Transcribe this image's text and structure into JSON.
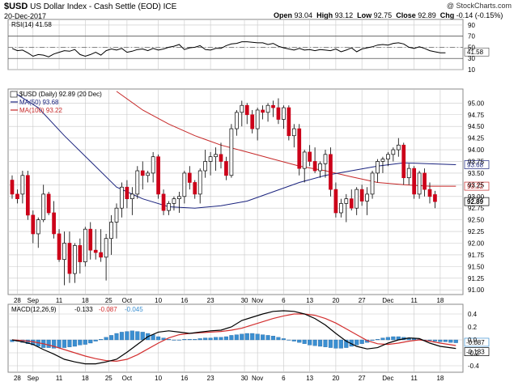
{
  "header": {
    "symbol": "$USD",
    "description": "US Dollar Index - Cash Settle (EOD) ICE",
    "date": "20-Dec-2017",
    "watermark": "@ StockCharts.com",
    "open_label": "Open",
    "open": "93.04",
    "high_label": "High",
    "high": "93.12",
    "low_label": "Low",
    "low": "92.75",
    "close_label": "Close",
    "close": "92.89",
    "chg_label": "Chg",
    "chg": "-0.14 (-0.15%)"
  },
  "colors": {
    "up_fill": "#ffffff",
    "down_fill": "#cc0019",
    "candle_edge": "#000000",
    "ma50": "#1a237e",
    "ma100": "#c62828",
    "rsi": "#000000",
    "macd": "#000000",
    "signal": "#d32f2f",
    "hist": "#3b8fd1",
    "grid": "#c8c8c8",
    "border": "#8a8a8a"
  },
  "chart_data": [
    {
      "type": "line",
      "name": "RSI",
      "legend": "RSI(14) 41.58",
      "ylim": [
        10,
        100
      ],
      "ticks": [
        "90",
        "70",
        "50",
        "30",
        "10"
      ],
      "tick_values": [
        90,
        70,
        50,
        30,
        10
      ],
      "current_label": "41.58",
      "current_value": 41.58,
      "values": [
        48,
        44,
        45,
        40,
        34,
        37,
        36,
        33,
        38,
        41,
        44,
        43,
        46,
        37,
        34,
        37,
        41,
        36,
        44,
        47,
        45,
        48,
        41,
        43,
        46,
        47,
        44,
        48,
        45,
        47,
        50,
        52,
        55,
        46,
        49,
        50,
        53,
        46,
        45,
        48,
        48,
        53,
        56,
        57,
        60,
        60,
        59,
        58,
        58,
        55,
        57,
        52,
        49,
        47,
        45,
        48,
        45,
        46,
        44,
        46,
        45,
        44,
        47,
        42,
        45,
        49,
        42,
        47,
        49,
        51,
        54,
        55,
        54,
        57,
        58,
        56,
        50,
        48,
        51,
        48,
        44,
        42,
        40,
        40
      ]
    },
    {
      "type": "candlestick",
      "name": "$USD (Daily)",
      "legend": "$USD (Daily) 92.89 (20 Dec)",
      "ma50_label": "MA(50) 93.68",
      "ma100_label": "MA(100) 93.22",
      "ylim": [
        90.9,
        95.3
      ],
      "ticks": [
        "95.00",
        "94.75",
        "94.50",
        "94.25",
        "94.00",
        "93.75",
        "93.50",
        "93.25",
        "93.00",
        "92.75",
        "92.50",
        "92.25",
        "92.00",
        "91.75",
        "91.50",
        "91.25",
        "91.00"
      ],
      "tick_values": [
        95,
        94.75,
        94.5,
        94.25,
        94,
        93.75,
        93.5,
        93.25,
        93,
        92.75,
        92.5,
        92.25,
        92,
        91.75,
        91.5,
        91.25,
        91
      ],
      "current_labels": {
        "ma50": "93.68",
        "ma100": "93.22",
        "close": "92.89"
      },
      "current_values": {
        "ma50": 93.68,
        "ma100": 93.22,
        "close": 92.89
      },
      "x_tick_labels": [
        "28",
        "Sep",
        "11",
        "18",
        "25",
        "Oct",
        "10",
        "16",
        "23",
        "30",
        "Nov",
        "6",
        "13",
        "20",
        "27",
        "Dec",
        "11",
        "18",
        "25"
      ],
      "x_tick_positions": [
        1,
        4,
        9,
        14,
        18.5,
        22,
        28,
        33,
        38,
        44.5,
        47,
        52,
        57,
        62,
        67,
        72,
        77,
        82,
        87
      ],
      "candles": [
        [
          93.35,
          93.45,
          92.95,
          93.05
        ],
        [
          93.05,
          93.15,
          92.85,
          92.95
        ],
        [
          93.05,
          93.55,
          92.85,
          93.45
        ],
        [
          93.45,
          93.55,
          92.5,
          92.6
        ],
        [
          92.6,
          92.7,
          92.0,
          92.2
        ],
        [
          92.2,
          92.55,
          91.9,
          92.5
        ],
        [
          92.5,
          93.25,
          92.45,
          93.05
        ],
        [
          93.05,
          93.1,
          92.6,
          92.65
        ],
        [
          92.65,
          92.9,
          92.1,
          92.2
        ],
        [
          92.2,
          92.3,
          91.6,
          91.65
        ],
        [
          91.65,
          92.25,
          91.1,
          92.0
        ],
        [
          92.0,
          92.25,
          91.15,
          91.35
        ],
        [
          91.35,
          92.0,
          91.15,
          91.95
        ],
        [
          91.95,
          92.1,
          91.35,
          91.6
        ],
        [
          91.6,
          92.35,
          91.5,
          92.3
        ],
        [
          92.3,
          92.45,
          91.65,
          91.85
        ],
        [
          91.85,
          92.3,
          91.65,
          91.8
        ],
        [
          91.8,
          92.3,
          91.6,
          91.7
        ],
        [
          91.7,
          92.2,
          91.2,
          92.1
        ],
        [
          92.1,
          92.6,
          91.75,
          92.45
        ],
        [
          92.45,
          92.85,
          92.1,
          92.75
        ],
        [
          92.75,
          93.3,
          92.55,
          93.2
        ],
        [
          93.2,
          93.35,
          92.75,
          92.95
        ],
        [
          92.95,
          93.2,
          92.6,
          93.05
        ],
        [
          93.05,
          93.65,
          92.95,
          93.55
        ],
        [
          93.55,
          93.75,
          93.15,
          93.45
        ],
        [
          93.45,
          93.55,
          93.3,
          93.5
        ],
        [
          93.5,
          93.95,
          93.3,
          93.85
        ],
        [
          93.85,
          93.9,
          92.95,
          93.05
        ],
        [
          93.05,
          93.15,
          92.6,
          92.7
        ],
        [
          92.7,
          92.9,
          92.6,
          92.85
        ],
        [
          92.85,
          93.0,
          92.7,
          92.95
        ],
        [
          92.95,
          93.1,
          92.65,
          93.0
        ],
        [
          93.0,
          93.55,
          92.85,
          93.5
        ],
        [
          93.5,
          93.65,
          93.15,
          93.3
        ],
        [
          93.3,
          93.35,
          92.95,
          93.05
        ],
        [
          93.05,
          93.6,
          92.85,
          93.55
        ],
        [
          93.55,
          94.0,
          93.4,
          93.75
        ],
        [
          93.75,
          93.95,
          93.45,
          93.85
        ],
        [
          93.85,
          94.05,
          93.55,
          93.9
        ],
        [
          93.9,
          94.15,
          93.6,
          93.75
        ],
        [
          93.75,
          93.85,
          93.35,
          93.45
        ],
        [
          93.45,
          94.55,
          93.4,
          94.45
        ],
        [
          94.45,
          94.85,
          94.3,
          94.8
        ],
        [
          94.8,
          95.05,
          94.5,
          94.95
        ],
        [
          94.95,
          95.0,
          94.55,
          94.75
        ],
        [
          94.75,
          94.85,
          94.35,
          94.45
        ],
        [
          94.45,
          94.9,
          94.2,
          94.85
        ],
        [
          94.85,
          94.95,
          94.65,
          94.8
        ],
        [
          94.8,
          95.0,
          94.6,
          94.95
        ],
        [
          94.95,
          95.05,
          94.7,
          94.9
        ],
        [
          94.9,
          95.1,
          94.55,
          94.65
        ],
        [
          94.65,
          94.95,
          94.45,
          94.9
        ],
        [
          94.9,
          94.95,
          94.2,
          94.3
        ],
        [
          94.3,
          94.55,
          94.05,
          94.45
        ],
        [
          94.45,
          94.55,
          93.45,
          93.6
        ],
        [
          93.6,
          94.0,
          93.3,
          93.95
        ],
        [
          93.95,
          94.1,
          93.65,
          93.75
        ],
        [
          93.75,
          94.05,
          93.5,
          93.55
        ],
        [
          93.55,
          93.75,
          93.4,
          93.7
        ],
        [
          93.7,
          94.0,
          93.4,
          93.9
        ],
        [
          93.9,
          94.05,
          93.0,
          93.15
        ],
        [
          93.15,
          93.3,
          92.55,
          92.65
        ],
        [
          92.65,
          92.95,
          92.55,
          92.85
        ],
        [
          92.85,
          93.05,
          92.45,
          92.95
        ],
        [
          92.95,
          93.15,
          92.7,
          92.75
        ],
        [
          92.75,
          93.2,
          92.6,
          93.15
        ],
        [
          93.15,
          93.25,
          92.8,
          92.9
        ],
        [
          92.9,
          93.2,
          92.6,
          93.05
        ],
        [
          93.05,
          93.55,
          92.95,
          93.5
        ],
        [
          93.5,
          93.8,
          93.3,
          93.75
        ],
        [
          93.75,
          93.85,
          93.5,
          93.8
        ],
        [
          93.8,
          93.95,
          93.65,
          93.9
        ],
        [
          93.9,
          94.05,
          93.75,
          94.0
        ],
        [
          94.0,
          94.25,
          93.85,
          94.1
        ],
        [
          94.1,
          94.15,
          93.25,
          93.4
        ],
        [
          93.4,
          93.7,
          93.25,
          93.6
        ],
        [
          93.6,
          93.65,
          92.95,
          93.05
        ],
        [
          93.05,
          93.55,
          92.95,
          93.5
        ],
        [
          93.5,
          93.6,
          93.0,
          93.15
        ],
        [
          93.15,
          93.3,
          92.85,
          93.0
        ],
        [
          93.04,
          93.12,
          92.75,
          92.89
        ]
      ],
      "ma50": {
        "start": 0,
        "end": 85,
        "points": [
          [
            0,
            95.25
          ],
          [
            5,
            94.9
          ],
          [
            10,
            94.3
          ],
          [
            15,
            93.75
          ],
          [
            20,
            93.2
          ],
          [
            25,
            92.95
          ],
          [
            30,
            92.78
          ],
          [
            35,
            92.75
          ],
          [
            40,
            92.8
          ],
          [
            45,
            92.9
          ],
          [
            50,
            93.1
          ],
          [
            55,
            93.3
          ],
          [
            60,
            93.45
          ],
          [
            65,
            93.55
          ],
          [
            70,
            93.65
          ],
          [
            75,
            93.72
          ],
          [
            80,
            93.7
          ],
          [
            85,
            93.68
          ]
        ]
      },
      "ma100": {
        "start": 20,
        "end": 85,
        "points": [
          [
            20,
            95.25
          ],
          [
            25,
            94.85
          ],
          [
            30,
            94.55
          ],
          [
            35,
            94.3
          ],
          [
            40,
            94.1
          ],
          [
            45,
            93.95
          ],
          [
            50,
            93.8
          ],
          [
            55,
            93.65
          ],
          [
            60,
            93.55
          ],
          [
            65,
            93.42
          ],
          [
            70,
            93.3
          ],
          [
            75,
            93.25
          ],
          [
            80,
            93.22
          ],
          [
            85,
            93.22
          ]
        ]
      }
    },
    {
      "type": "line",
      "name": "MACD",
      "legend_macd": "MACD(12,26,9)",
      "legend_macd_val": "-0.133",
      "legend_signal_val": "-0.087",
      "legend_hist_val": "-0.045",
      "ylim": [
        -0.5,
        0.55
      ],
      "ticks": [
        "0.4",
        "0.2",
        "0.0",
        "-0.2",
        "-0.4"
      ],
      "tick_values": [
        0.4,
        0.2,
        0.0,
        -0.2,
        -0.4
      ],
      "current_labels": {
        "signal": "-0.087",
        "macd": "-0.133"
      },
      "current_values": {
        "signal": -0.087,
        "macd": -0.133
      },
      "macd": [
        [
          0,
          0.0
        ],
        [
          2,
          -0.03
        ],
        [
          4,
          -0.07
        ],
        [
          6,
          -0.15
        ],
        [
          8,
          -0.22
        ],
        [
          10,
          -0.3
        ],
        [
          12,
          -0.34
        ],
        [
          14,
          -0.37
        ],
        [
          16,
          -0.37
        ],
        [
          18,
          -0.34
        ],
        [
          20,
          -0.3
        ],
        [
          22,
          -0.19
        ],
        [
          24,
          -0.07
        ],
        [
          26,
          0.05
        ],
        [
          28,
          0.12
        ],
        [
          30,
          0.14
        ],
        [
          32,
          0.12
        ],
        [
          34,
          0.1
        ],
        [
          36,
          0.12
        ],
        [
          38,
          0.14
        ],
        [
          40,
          0.15
        ],
        [
          42,
          0.2
        ],
        [
          44,
          0.3
        ],
        [
          46,
          0.35
        ],
        [
          48,
          0.4
        ],
        [
          50,
          0.44
        ],
        [
          52,
          0.45
        ],
        [
          54,
          0.44
        ],
        [
          56,
          0.4
        ],
        [
          58,
          0.33
        ],
        [
          60,
          0.23
        ],
        [
          62,
          0.1
        ],
        [
          64,
          -0.02
        ],
        [
          66,
          -0.1
        ],
        [
          68,
          -0.14
        ],
        [
          70,
          -0.12
        ],
        [
          72,
          -0.05
        ],
        [
          74,
          0.0
        ],
        [
          76,
          0.03
        ],
        [
          78,
          0.02
        ],
        [
          80,
          -0.05
        ],
        [
          82,
          -0.1
        ],
        [
          85,
          -0.133
        ]
      ],
      "signal": [
        [
          0,
          0.0
        ],
        [
          2,
          -0.01
        ],
        [
          4,
          -0.03
        ],
        [
          6,
          -0.06
        ],
        [
          8,
          -0.1
        ],
        [
          10,
          -0.15
        ],
        [
          12,
          -0.2
        ],
        [
          14,
          -0.25
        ],
        [
          16,
          -0.29
        ],
        [
          18,
          -0.32
        ],
        [
          20,
          -0.33
        ],
        [
          22,
          -0.3
        ],
        [
          24,
          -0.23
        ],
        [
          26,
          -0.14
        ],
        [
          28,
          -0.05
        ],
        [
          30,
          0.03
        ],
        [
          32,
          0.08
        ],
        [
          34,
          0.1
        ],
        [
          36,
          0.11
        ],
        [
          38,
          0.12
        ],
        [
          40,
          0.13
        ],
        [
          42,
          0.15
        ],
        [
          44,
          0.18
        ],
        [
          46,
          0.23
        ],
        [
          48,
          0.28
        ],
        [
          50,
          0.33
        ],
        [
          52,
          0.37
        ],
        [
          54,
          0.4
        ],
        [
          56,
          0.4
        ],
        [
          58,
          0.38
        ],
        [
          60,
          0.33
        ],
        [
          62,
          0.26
        ],
        [
          64,
          0.17
        ],
        [
          66,
          0.08
        ],
        [
          68,
          -0.01
        ],
        [
          70,
          -0.06
        ],
        [
          72,
          -0.07
        ],
        [
          74,
          -0.05
        ],
        [
          76,
          -0.02
        ],
        [
          78,
          0.0
        ],
        [
          80,
          -0.02
        ],
        [
          82,
          -0.05
        ],
        [
          85,
          -0.087
        ]
      ],
      "histogram": [
        -0.03,
        -0.02,
        -0.04,
        -0.06,
        -0.08,
        -0.1,
        -0.12,
        -0.12,
        -0.13,
        -0.12,
        -0.12,
        -0.11,
        -0.1,
        -0.08,
        -0.07,
        -0.05,
        -0.02,
        0.01,
        0.04,
        0.07,
        0.1,
        0.12,
        0.13,
        0.14,
        0.13,
        0.12,
        0.1,
        0.08,
        0.05,
        0.03,
        0.01,
        0.0,
        0.0,
        0.01,
        0.01,
        0.01,
        0.02,
        0.03,
        0.03,
        0.04,
        0.04,
        0.05,
        0.07,
        0.08,
        0.09,
        0.1,
        0.1,
        0.09,
        0.08,
        0.07,
        0.06,
        0.04,
        0.02,
        0.0,
        -0.02,
        -0.04,
        -0.06,
        -0.08,
        -0.09,
        -0.1,
        -0.11,
        -0.12,
        -0.13,
        -0.13,
        -0.12,
        -0.1,
        -0.08,
        -0.06,
        -0.04,
        -0.01,
        0.01,
        0.03,
        0.04,
        0.05,
        0.05,
        0.04,
        0.03,
        0.02,
        0.01,
        0.0,
        -0.01,
        -0.02,
        -0.03,
        -0.03,
        -0.04,
        -0.045
      ]
    }
  ]
}
